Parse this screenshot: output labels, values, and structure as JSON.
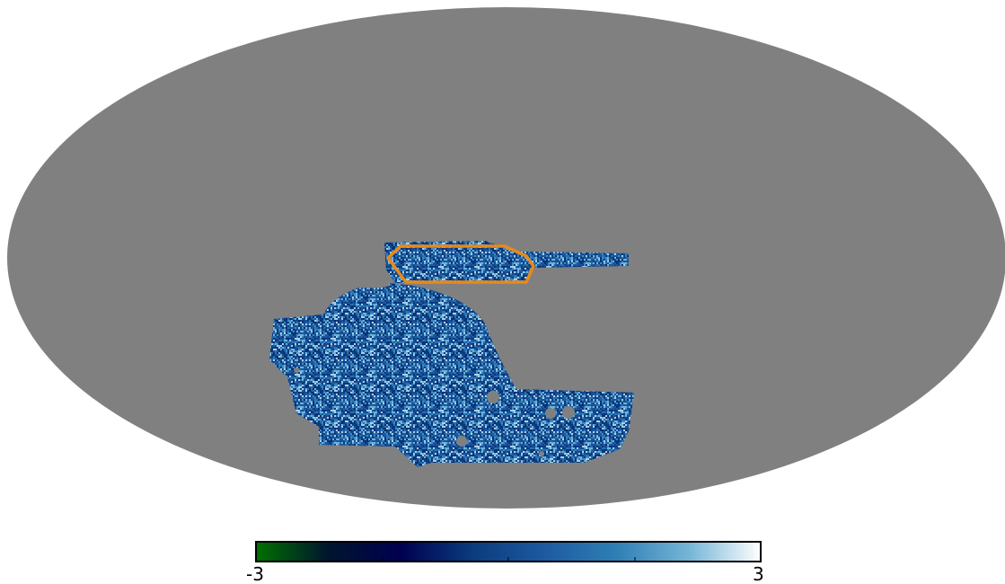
{
  "map": {
    "projection": "mollweide",
    "background_color": "#808080",
    "mask_color": "#808080",
    "outline_color": "#e8891a",
    "noise_palette": [
      "#0a2f6e",
      "#0d3c82",
      "#134a93",
      "#1a5aa3",
      "#2673b3",
      "#3a8cc4",
      "#6fb1d8",
      "#a9d0e8",
      "#1f4f8f",
      "#0b3575"
    ]
  },
  "colorbar": {
    "min_label": "-3",
    "max_label": "3",
    "vmin": -3,
    "vmax": 3,
    "colors": [
      "#007000",
      "#00152e",
      "#000050",
      "#0a3b7d",
      "#1d5aa0",
      "#2f7fb5",
      "#74b5d6",
      "#ffffff"
    ]
  }
}
